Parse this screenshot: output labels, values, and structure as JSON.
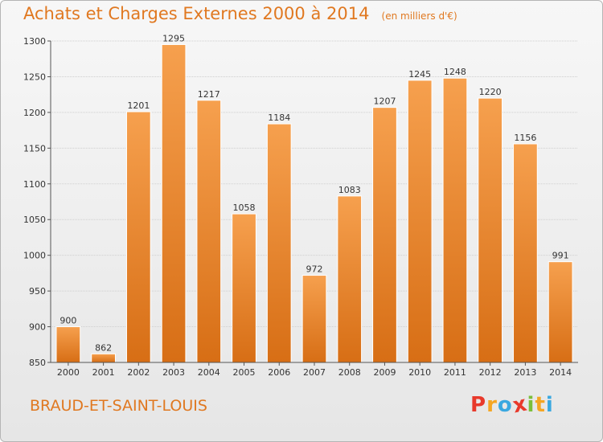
{
  "chart_data": {
    "type": "bar",
    "title": "Achats et Charges Externes 2000 à 2014",
    "subtitle": "(en milliers d'€)",
    "categories": [
      "2000",
      "2001",
      "2002",
      "2003",
      "2004",
      "2005",
      "2006",
      "2007",
      "2008",
      "2009",
      "2010",
      "2011",
      "2012",
      "2013",
      "2014"
    ],
    "values": [
      900,
      862,
      1201,
      1295,
      1217,
      1058,
      1184,
      972,
      1083,
      1207,
      1245,
      1248,
      1220,
      1156,
      991
    ],
    "ylim": [
      850,
      1300
    ],
    "yticks": [
      850,
      900,
      950,
      1000,
      1050,
      1100,
      1150,
      1200,
      1250,
      1300
    ],
    "grid": true,
    "bar_color": "#f28a2e"
  },
  "footer": {
    "place": "BRAUD-ET-SAINT-LOUIS",
    "logo": "Proxiti",
    "logo_colors": [
      "#e8392b",
      "#f5a623",
      "#3aa8e0",
      "#e8392b",
      "#7bbf3a",
      "#f5a623",
      "#3aa8e0"
    ]
  }
}
